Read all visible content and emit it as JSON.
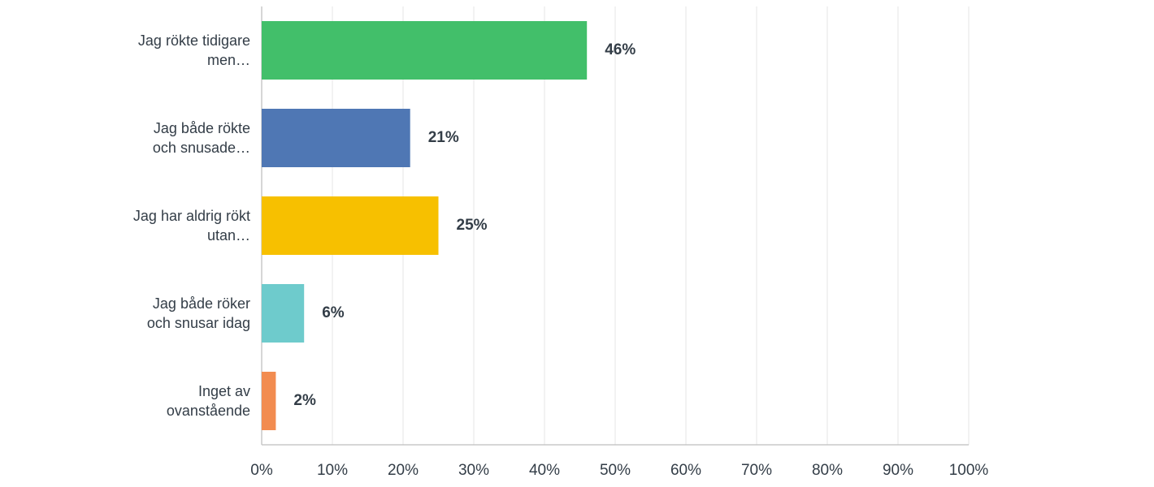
{
  "chart_data": {
    "type": "hbar",
    "categories": [
      "Jag rökte tidigare men…",
      "Jag både rökte och snusade…",
      "Jag har aldrig rökt utan…",
      "Jag både röker och snusar idag",
      "Inget av ovanstående"
    ],
    "values": [
      46,
      21,
      25,
      6,
      2
    ],
    "value_labels": [
      "46%",
      "21%",
      "25%",
      "6%",
      "2%"
    ],
    "colors": [
      "#42bf6a",
      "#4f77b4",
      "#f7c000",
      "#6ecbcc",
      "#f28c50"
    ],
    "xlim": [
      0,
      100
    ],
    "xticks": [
      {
        "value": 0,
        "label": "0%"
      },
      {
        "value": 10,
        "label": "10%"
      },
      {
        "value": 20,
        "label": "20%"
      },
      {
        "value": 30,
        "label": "30%"
      },
      {
        "value": 40,
        "label": "40%"
      },
      {
        "value": 50,
        "label": "50%"
      },
      {
        "value": 60,
        "label": "60%"
      },
      {
        "value": 70,
        "label": "70%"
      },
      {
        "value": 80,
        "label": "80%"
      },
      {
        "value": 90,
        "label": "90%"
      },
      {
        "value": 100,
        "label": "100%"
      }
    ],
    "grid": true
  }
}
